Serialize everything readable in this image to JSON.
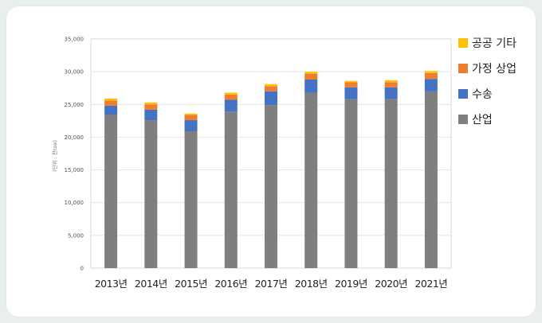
{
  "chart_data": {
    "type": "bar",
    "stacked": true,
    "categories": [
      "2013년",
      "2014년",
      "2015년",
      "2016년",
      "2017년",
      "2018년",
      "2019년",
      "2020년",
      "2021년"
    ],
    "series": [
      {
        "name": "산업",
        "color": "#7f7f7f",
        "values": [
          23400,
          22600,
          20900,
          23900,
          24900,
          26800,
          25800,
          25800,
          27000
        ]
      },
      {
        "name": "수송",
        "color": "#4472c4",
        "values": [
          1400,
          1600,
          1700,
          1800,
          2100,
          2000,
          1800,
          1800,
          1900
        ]
      },
      {
        "name": "가정 상업",
        "color": "#ed7d31",
        "values": [
          800,
          800,
          800,
          800,
          800,
          900,
          800,
          800,
          900
        ]
      },
      {
        "name": "공공 기타",
        "color": "#ffc000",
        "values": [
          300,
          300,
          200,
          300,
          300,
          300,
          200,
          300,
          300
        ]
      }
    ],
    "ylabel": "(단위 : 천toe)",
    "ylim": [
      0,
      35000
    ],
    "yticks": [
      "0",
      "5,000",
      "10,000",
      "15,000",
      "20,000",
      "25,000",
      "30,000",
      "35,000"
    ],
    "ytick_values": [
      0,
      5000,
      10000,
      15000,
      20000,
      25000,
      30000,
      35000
    ],
    "grid": true,
    "legend_position": "right",
    "legend_order": [
      "공공 기타",
      "가정 상업",
      "수송",
      "산업"
    ]
  }
}
